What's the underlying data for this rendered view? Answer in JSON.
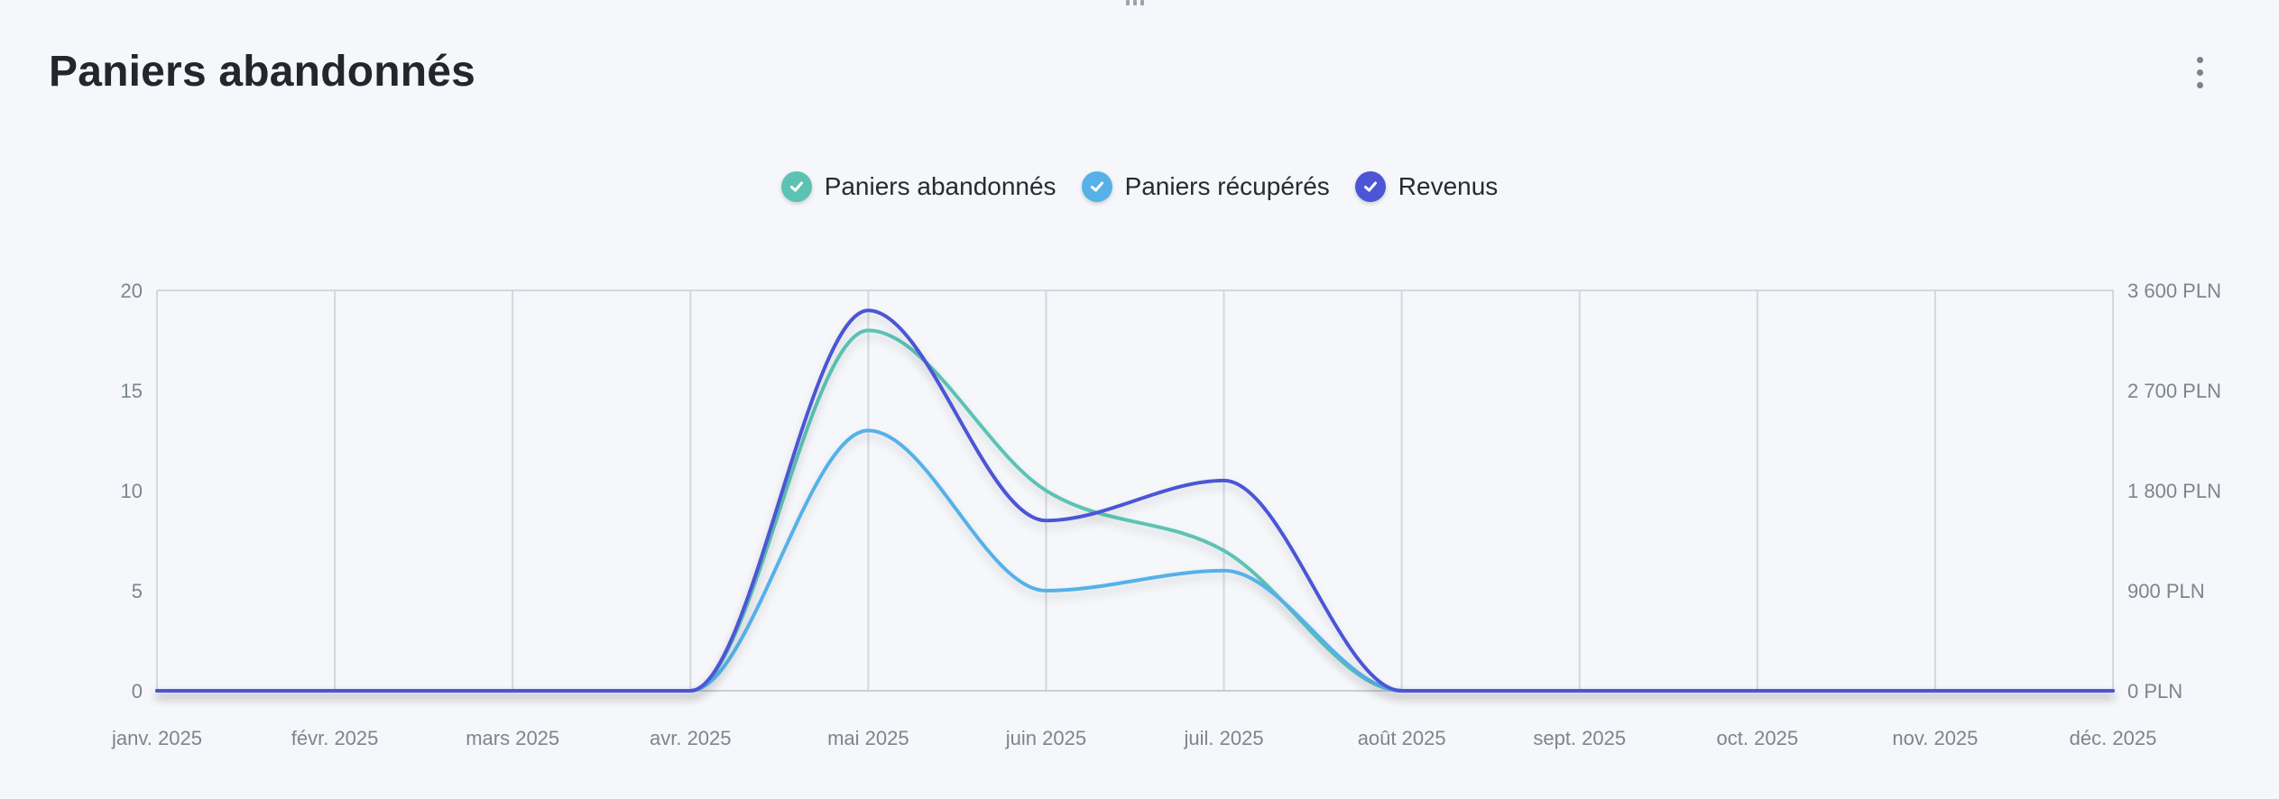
{
  "card": {
    "title": "Paniers abandonnés",
    "more_icon": "more-vertical-icon",
    "drag_icon": "drag-handle-icon"
  },
  "chart_data": {
    "type": "line",
    "title": "Paniers abandonnés",
    "categories": [
      "janv. 2025",
      "févr. 2025",
      "mars 2025",
      "avr. 2025",
      "mai 2025",
      "juin 2025",
      "juil. 2025",
      "août 2025",
      "sept. 2025",
      "oct. 2025",
      "nov. 2025",
      "déc. 2025"
    ],
    "y_left": {
      "min": 0,
      "max": 20,
      "ticks": [
        0,
        5,
        10,
        15,
        20
      ],
      "tick_labels": [
        "0",
        "5",
        "10",
        "15",
        "20"
      ]
    },
    "y_right": {
      "min": 0,
      "max": 3600,
      "ticks": [
        0,
        900,
        1800,
        2700,
        3600
      ],
      "tick_labels": [
        "0 PLN",
        "900 PLN",
        "1 800 PLN",
        "2 700 PLN",
        "3 600 PLN"
      ]
    },
    "grid": "vertical",
    "legend_position": "top-center",
    "series": [
      {
        "name": "Paniers abandonnés",
        "axis": "left",
        "color": "#5cc3b4",
        "values": [
          0,
          0,
          0,
          0,
          18,
          10,
          7,
          0,
          0,
          0,
          0,
          0
        ]
      },
      {
        "name": "Paniers récupérés",
        "axis": "left",
        "color": "#55b1e8",
        "values": [
          0,
          0,
          0,
          0,
          13,
          5,
          6,
          0,
          0,
          0,
          0,
          0
        ]
      },
      {
        "name": "Revenus",
        "axis": "right",
        "color": "#4b55d6",
        "values": [
          0,
          0,
          0,
          0,
          3420,
          1530,
          1890,
          0,
          0,
          0,
          0,
          0
        ]
      }
    ]
  },
  "legend": {
    "items": [
      {
        "label": "Paniers abandonnés",
        "color": "#5cc3b4",
        "icon": "check-icon"
      },
      {
        "label": "Paniers récupérés",
        "color": "#55b1e8",
        "icon": "check-icon"
      },
      {
        "label": "Revenus",
        "color": "#4b55d6",
        "icon": "check-icon"
      }
    ]
  }
}
